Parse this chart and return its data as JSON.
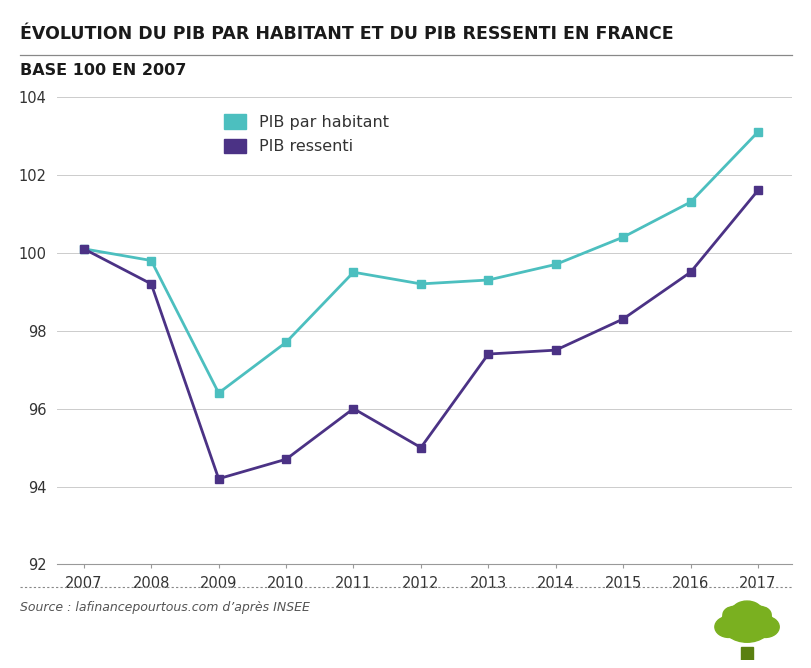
{
  "title": "ÉVOLUTION DU PIB PAR HABITANT ET DU PIB RESSENTI EN FRANCE",
  "subtitle": "BASE 100 EN 2007",
  "years": [
    2007,
    2008,
    2009,
    2010,
    2011,
    2012,
    2013,
    2014,
    2015,
    2016,
    2017
  ],
  "pib_habitant": [
    100.1,
    99.8,
    96.4,
    97.7,
    99.5,
    99.2,
    99.3,
    99.7,
    100.4,
    101.3,
    103.1
  ],
  "pib_ressenti": [
    100.1,
    99.2,
    94.2,
    94.7,
    96.0,
    95.0,
    97.4,
    97.5,
    98.3,
    99.5,
    101.6
  ],
  "color_habitant": "#4CBFBF",
  "color_ressenti": "#4B3285",
  "legend_habitant": "PIB par habitant",
  "legend_ressenti": "PIB ressenti",
  "ylim": [
    92,
    104
  ],
  "yticks": [
    92,
    94,
    96,
    98,
    100,
    102,
    104
  ],
  "source_text": "Source : lafinancepourtous.com d’après INSEE",
  "background_color": "#FFFFFF",
  "grid_color": "#CCCCCC",
  "title_color": "#1a1a1a",
  "subtitle_color": "#1a1a1a",
  "tree_color": "#7AB020",
  "tree_trunk_color": "#5A8010"
}
